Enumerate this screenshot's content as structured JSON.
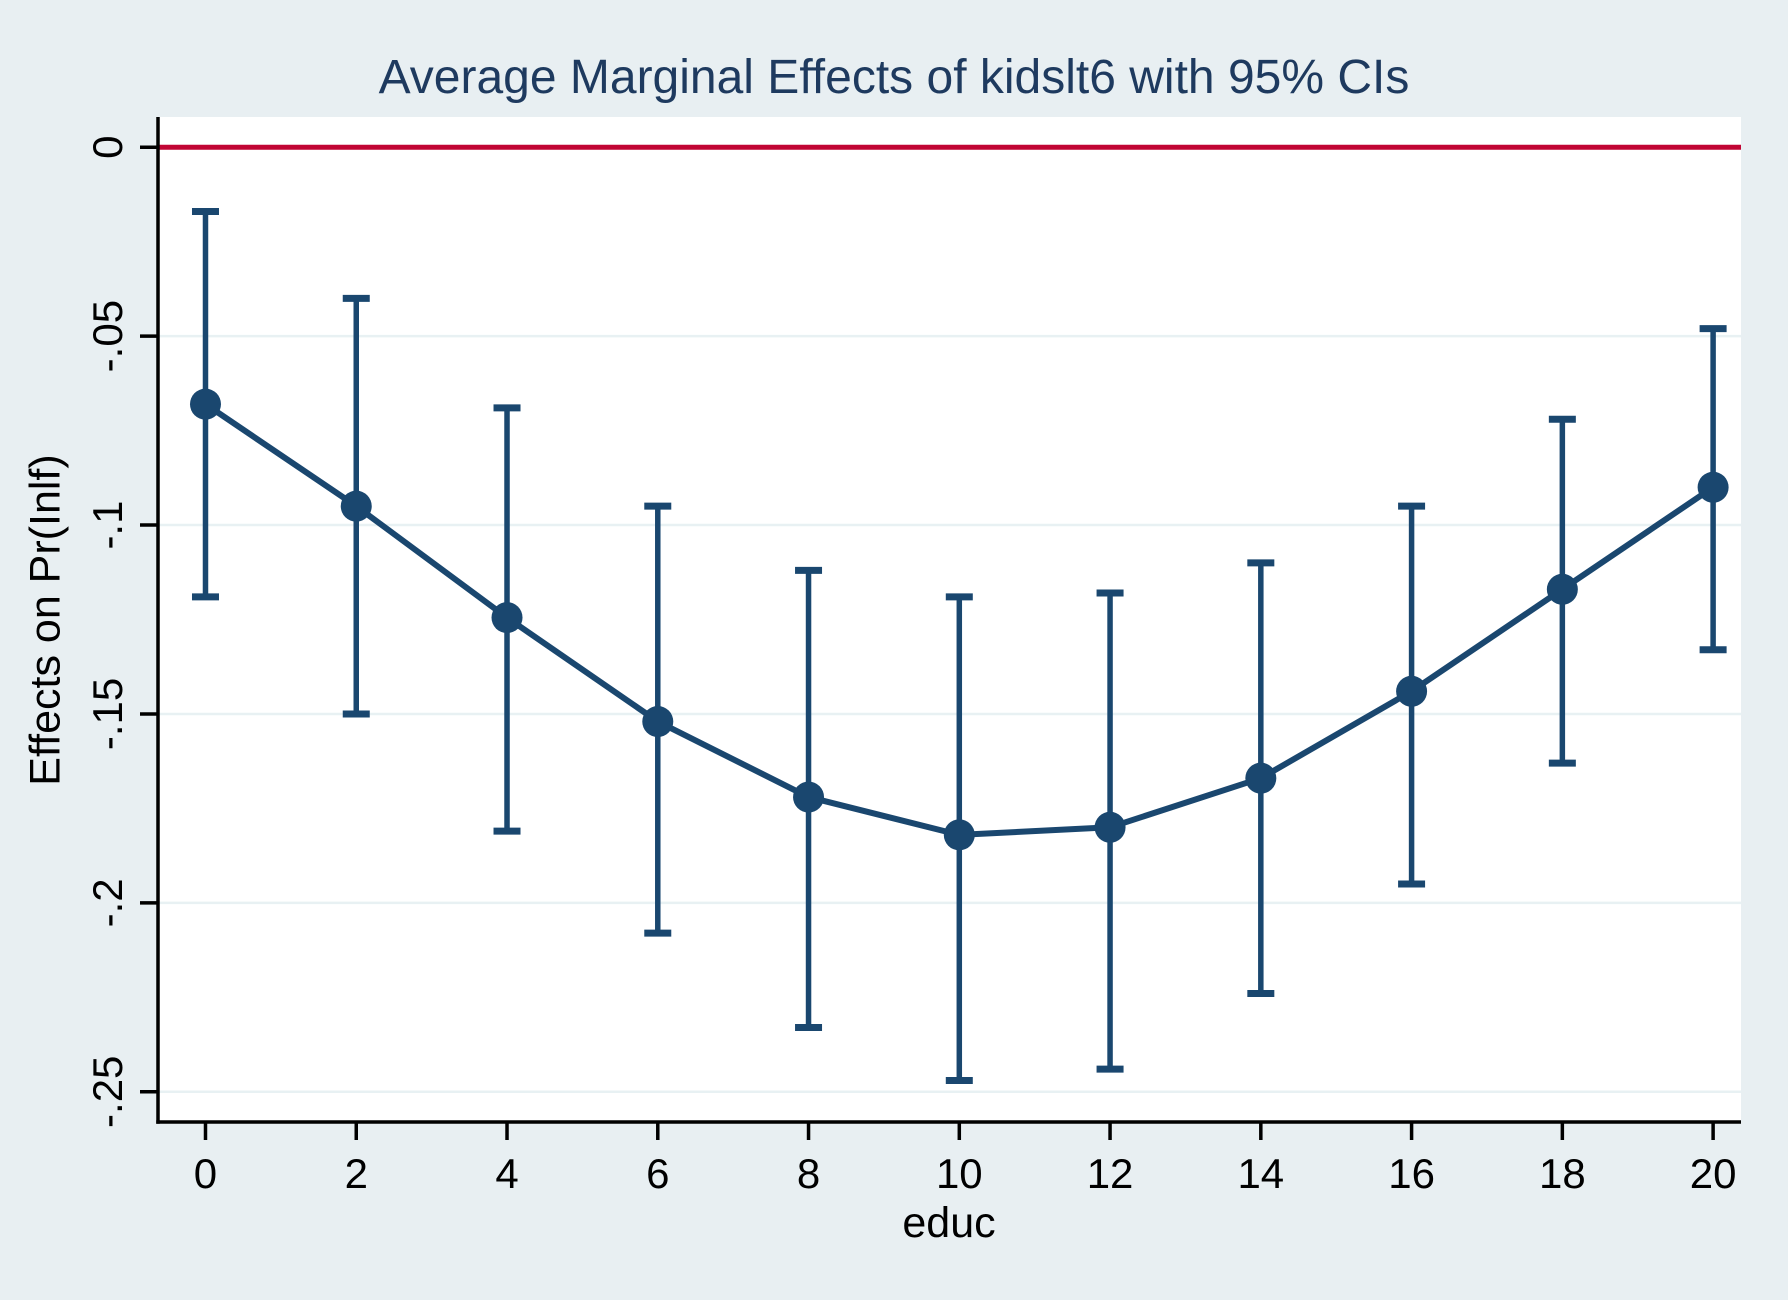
{
  "chart_data": {
    "type": "line",
    "title": "Average Marginal Effects of kidslt6 with 95% CIs",
    "xlabel": "educ",
    "ylabel": "Effects on Pr(Inlf)",
    "ci_level": "95%",
    "x": [
      0,
      2,
      4,
      6,
      8,
      10,
      12,
      14,
      16,
      18,
      20
    ],
    "series": [
      {
        "name": "Average marginal effect of kidslt6",
        "values": [
          -0.068,
          -0.095,
          -0.1245,
          -0.152,
          -0.172,
          -0.182,
          -0.18,
          -0.167,
          -0.144,
          -0.117,
          -0.09
        ],
        "ci_upper": [
          -0.017,
          -0.04,
          -0.069,
          -0.095,
          -0.112,
          -0.119,
          -0.118,
          -0.11,
          -0.095,
          -0.072,
          -0.048
        ],
        "ci_lower": [
          -0.119,
          -0.15,
          -0.181,
          -0.208,
          -0.233,
          -0.247,
          -0.244,
          -0.224,
          -0.195,
          -0.163,
          -0.133
        ]
      }
    ],
    "refline": {
      "y": 0
    },
    "x_ticks": [
      0,
      2,
      4,
      6,
      8,
      10,
      12,
      14,
      16,
      18,
      20
    ],
    "x_tick_labels": [
      "0",
      "2",
      "4",
      "6",
      "8",
      "10",
      "12",
      "14",
      "16",
      "18",
      "20"
    ],
    "y_ticks": [
      0,
      -0.05,
      -0.1,
      -0.15,
      -0.2,
      -0.25
    ],
    "y_tick_labels": [
      "0",
      "-.05",
      "-.1",
      "-.15",
      "-.2",
      "-.25"
    ],
    "xlim": [
      -0.63,
      20.37
    ],
    "ylim": [
      -0.258,
      0.008
    ],
    "grid": true,
    "legend": "none"
  },
  "style": {
    "background_color": "#e8eff2",
    "plot_background_color": "#ffffff",
    "gridline_color": "#e8f1f3",
    "axis_color": "#000000",
    "tick_label_color": "#000000",
    "title_color": "#1e3a5f",
    "series_color": "#1a476f",
    "refline_color": "#c10534"
  }
}
